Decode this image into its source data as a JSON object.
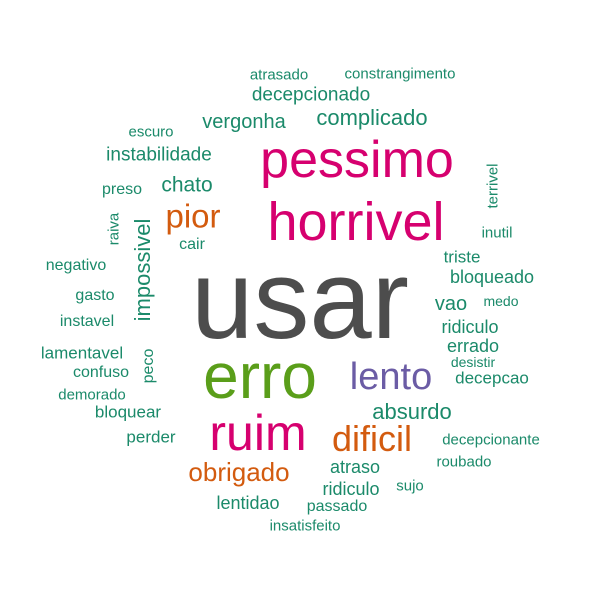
{
  "palette": {
    "gray": "#4d4d4d",
    "magenta": "#d6006f",
    "green": "#5a9e1a",
    "purple": "#6b5ca5",
    "orange": "#d35b0f",
    "teal": "#1b8a6a"
  },
  "words": [
    {
      "text": "usar",
      "color": "gray"
    },
    {
      "text": "pessimo",
      "color": "magenta"
    },
    {
      "text": "horrivel",
      "color": "magenta"
    },
    {
      "text": "erro",
      "color": "green"
    },
    {
      "text": "ruim",
      "color": "magenta"
    },
    {
      "text": "lento",
      "color": "purple"
    },
    {
      "text": "dificil",
      "color": "orange"
    },
    {
      "text": "pior",
      "color": "orange"
    },
    {
      "text": "obrigado",
      "color": "orange"
    },
    {
      "text": "absurdo",
      "color": "teal"
    },
    {
      "text": "complicado",
      "color": "teal"
    },
    {
      "text": "decepcionado",
      "color": "teal"
    },
    {
      "text": "vergonha",
      "color": "teal"
    },
    {
      "text": "instabilidade",
      "color": "teal"
    },
    {
      "text": "chato",
      "color": "teal"
    },
    {
      "text": "impossivel",
      "color": "teal"
    },
    {
      "text": "atrasado",
      "color": "teal"
    },
    {
      "text": "constrangimento",
      "color": "teal"
    },
    {
      "text": "escuro",
      "color": "teal"
    },
    {
      "text": "preso",
      "color": "teal"
    },
    {
      "text": "raiva",
      "color": "teal"
    },
    {
      "text": "cair",
      "color": "teal"
    },
    {
      "text": "negativo",
      "color": "teal"
    },
    {
      "text": "gasto",
      "color": "teal"
    },
    {
      "text": "instavel",
      "color": "teal"
    },
    {
      "text": "lamentavel",
      "color": "teal"
    },
    {
      "text": "peco",
      "color": "teal"
    },
    {
      "text": "confuso",
      "color": "teal"
    },
    {
      "text": "demorado",
      "color": "teal"
    },
    {
      "text": "bloquear",
      "color": "teal"
    },
    {
      "text": "perder",
      "color": "teal"
    },
    {
      "text": "terrivel",
      "color": "teal"
    },
    {
      "text": "inutil",
      "color": "teal"
    },
    {
      "text": "triste",
      "color": "teal"
    },
    {
      "text": "bloqueado",
      "color": "teal"
    },
    {
      "text": "vao",
      "color": "teal"
    },
    {
      "text": "medo",
      "color": "teal"
    },
    {
      "text": "ridiculo",
      "color": "teal"
    },
    {
      "text": "errado",
      "color": "teal"
    },
    {
      "text": "desistir",
      "color": "teal"
    },
    {
      "text": "decepcao",
      "color": "teal"
    },
    {
      "text": "decepcionante",
      "color": "teal"
    },
    {
      "text": "roubado",
      "color": "teal"
    },
    {
      "text": "atraso",
      "color": "teal"
    },
    {
      "text": "ridiculo",
      "color": "teal"
    },
    {
      "text": "sujo",
      "color": "teal"
    },
    {
      "text": "lentidao",
      "color": "teal"
    },
    {
      "text": "passado",
      "color": "teal"
    },
    {
      "text": "insatisfeito",
      "color": "teal"
    }
  ]
}
